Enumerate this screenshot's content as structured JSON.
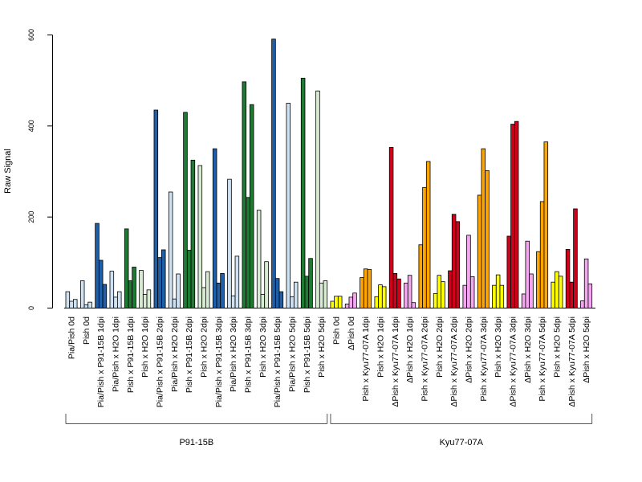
{
  "chart_data": {
    "type": "bar",
    "title": "",
    "xlabel": "",
    "ylabel": "Raw Signal",
    "ylim": [
      0,
      600
    ],
    "yticks": [
      0,
      200,
      400,
      600
    ],
    "grid": false,
    "categories": [
      "Pia/Pish 0d",
      "Pish 0d",
      "Pia/Pish x P91-15B 1dpi",
      "Pia/Pish x H2O 1dpi",
      "Pish x P91-15B 1dpi",
      "Pish x H2O 1dpi",
      "Pia/Pish x P91-15B 2dpi",
      "Pia/Pish x H2O 2dpi",
      "Pish x P91-15B 2dpi",
      "Pish x H2O 2dpi",
      "Pia/Pish x P91-15B 3dpi",
      "Pia/Pish x H2O 3dpi",
      "Pish x P91-15B 3dpi",
      "Pish x H2O 3dpi",
      "Pia/Pish x P91-15B 5dpi",
      "Pia/Pish x H2O 5dpi",
      "Pish x P91-15B 5dpi",
      "Pish x H2O 5dpi",
      "Pish 0d",
      "ΔPish 0d",
      "Pish x Kyu77-07A 1dpi",
      "Pish x H2O 1dpi",
      "ΔPish x Kyu77-07A 1dpi",
      "ΔPish x H2O 1dpi",
      "Pish x Kyu77-07A 2dpi",
      "Pish x H2O 2dpi",
      "ΔPish x Kyu77-07A 2dpi",
      "ΔPish x H2O 2dpi",
      "Pish x Kyu77-07A 3dpi",
      "Pish x H2O 3dpi",
      "ΔPish x Kyu77-07A 3dpi",
      "ΔPish x H2O 3dpi",
      "Pish x Kyu77-07A 5dpi",
      "Pish x H2O 5dpi",
      "ΔPish x Kyu77-07A 5dpi",
      "ΔPish x H2O 5dpi"
    ],
    "group_colors": [
      "#cfe2f3",
      "#cfe2f3",
      "#1f5fa8",
      "#cfe2f3",
      "#1f7a34",
      "#d8ecd4",
      "#1f5fa8",
      "#cfe2f3",
      "#1f7a34",
      "#d8ecd4",
      "#1f5fa8",
      "#cfe2f3",
      "#1f7a34",
      "#d8ecd4",
      "#1f5fa8",
      "#cfe2f3",
      "#1f7a34",
      "#d8ecd4",
      "#ffff00",
      "#f4a6f0",
      "#ffa500",
      "#ffff00",
      "#d0021b",
      "#f4a6f0",
      "#ffa500",
      "#ffff00",
      "#d0021b",
      "#f4a6f0",
      "#ffa500",
      "#ffff00",
      "#d0021b",
      "#f4a6f0",
      "#ffa500",
      "#ffff00",
      "#d0021b",
      "#f4a6f0"
    ],
    "values": [
      [
        36,
        15,
        19
      ],
      [
        60,
        7,
        13
      ],
      [
        186,
        105,
        52
      ],
      [
        81,
        24,
        36
      ],
      [
        174,
        60,
        90
      ],
      [
        83,
        30,
        40
      ],
      [
        435,
        111,
        128
      ],
      [
        255,
        20,
        75
      ],
      [
        430,
        127,
        325
      ],
      [
        313,
        45,
        80
      ],
      [
        350,
        55,
        76
      ],
      [
        283,
        27,
        114
      ],
      [
        497,
        243,
        447
      ],
      [
        215,
        30,
        102
      ],
      [
        591,
        65,
        36
      ],
      [
        450,
        25,
        57
      ],
      [
        505,
        70,
        109
      ],
      [
        477,
        55,
        60
      ],
      [
        15,
        26,
        26
      ],
      [
        9,
        24,
        33
      ],
      [
        67,
        86,
        85
      ],
      [
        25,
        51,
        47
      ],
      [
        353,
        76,
        64
      ],
      [
        55,
        72,
        12
      ],
      [
        139,
        265,
        322
      ],
      [
        32,
        72,
        58
      ],
      [
        82,
        206,
        190
      ],
      [
        50,
        160,
        69
      ],
      [
        248,
        350,
        302
      ],
      [
        50,
        73,
        50
      ],
      [
        158,
        404,
        410
      ],
      [
        31,
        147,
        75
      ],
      [
        124,
        234,
        365
      ],
      [
        57,
        80,
        70
      ],
      [
        129,
        57,
        218
      ],
      [
        16,
        108,
        53
      ]
    ],
    "groups": [
      {
        "label": "P91-15B",
        "from": 0,
        "to": 17
      },
      {
        "label": "Kyu77-07A",
        "from": 18,
        "to": 35
      }
    ]
  }
}
